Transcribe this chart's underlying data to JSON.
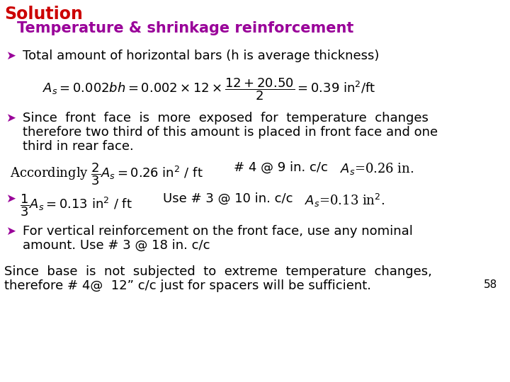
{
  "title_solution": "Solution",
  "title_sub": "Temperature & shrinkage reinforcement",
  "bg_color": "#ffffff",
  "solution_color": "#cc0000",
  "subtitle_color": "#990099",
  "arrow_color": "#990099",
  "text_color": "#000000",
  "page_number": "58",
  "bullet": "➤"
}
